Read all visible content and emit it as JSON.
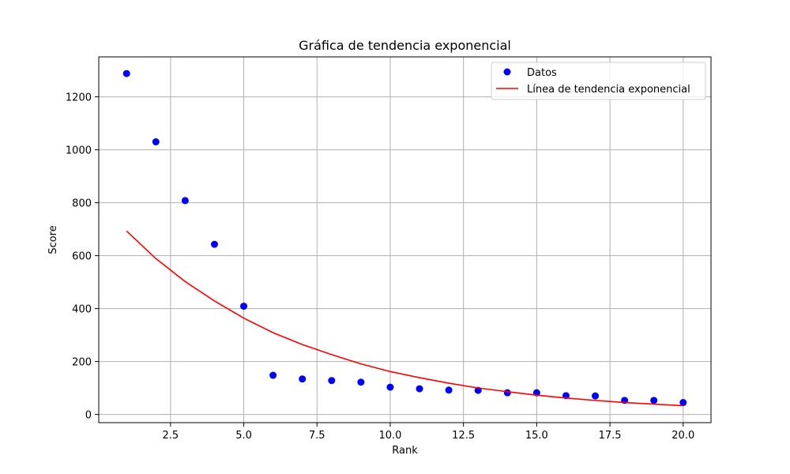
{
  "chart_data": {
    "type": "scatter",
    "title": "Gráfica de tendencia exponencial",
    "xlabel": "Rank",
    "ylabel": "Score",
    "xlim": [
      0.05,
      20.95
    ],
    "ylim": [
      -31,
      1351
    ],
    "xticks": [
      2.5,
      5.0,
      7.5,
      10.0,
      12.5,
      15.0,
      17.5,
      20.0
    ],
    "xtick_labels": [
      "2.5",
      "5.0",
      "7.5",
      "10.0",
      "12.5",
      "15.0",
      "17.5",
      "20.0"
    ],
    "yticks": [
      0,
      200,
      400,
      600,
      800,
      1000,
      1200
    ],
    "ytick_labels": [
      "0",
      "200",
      "400",
      "600",
      "800",
      "1000",
      "1200"
    ],
    "grid": true,
    "legend_position": "top-right",
    "series": [
      {
        "name": "Datos",
        "kind": "scatter",
        "color": "#0000ff",
        "x": [
          1,
          2,
          3,
          4,
          5,
          6,
          7,
          8,
          9,
          10,
          11,
          12,
          13,
          14,
          15,
          16,
          17,
          18,
          19,
          20
        ],
        "y": [
          1288,
          1030,
          808,
          643,
          409,
          148,
          134,
          128,
          122,
          103,
          97,
          92,
          91,
          82,
          82,
          71,
          70,
          53,
          53,
          45
        ]
      },
      {
        "name": "Línea de tendencia exponencial",
        "kind": "line",
        "color": "#ff0000",
        "x": [
          1,
          2,
          3,
          4,
          5,
          6,
          7,
          8,
          9,
          10,
          11,
          12,
          13,
          14,
          15,
          16,
          17,
          18,
          19,
          20
        ],
        "y": [
          693,
          589,
          502,
          429,
          364,
          309,
          264,
          226,
          191,
          162,
          139,
          118,
          100,
          86,
          73,
          62,
          53,
          45,
          39,
          33
        ]
      }
    ]
  }
}
